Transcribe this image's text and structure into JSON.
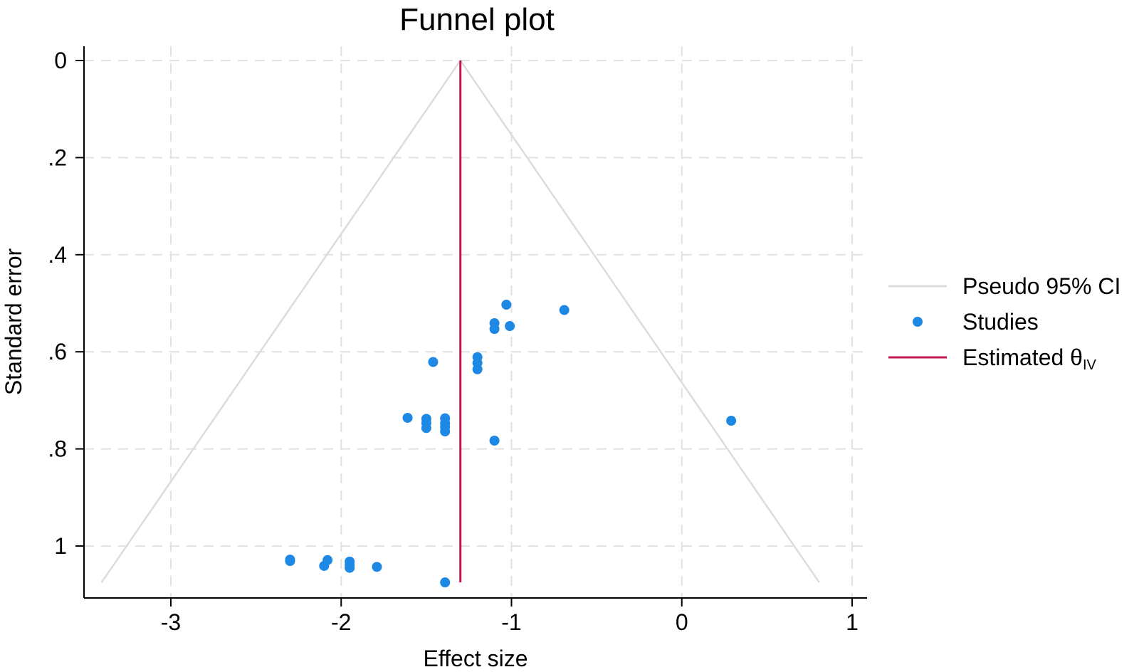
{
  "chart_data": {
    "type": "scatter",
    "title": "Funnel plot",
    "xlabel": "Effect size",
    "ylabel": "Standard error",
    "xlim": [
      -3.5,
      1.1
    ],
    "ylim": [
      0,
      1.11
    ],
    "y_reversed": true,
    "x_ticks": [
      -3,
      -2,
      -1,
      0,
      1
    ],
    "x_tick_labels": [
      "-3",
      "-2",
      "-1",
      "0",
      "1"
    ],
    "y_ticks": [
      0,
      0.2,
      0.4,
      0.6,
      0.8,
      1
    ],
    "y_tick_labels": [
      "0",
      ".2",
      ".4",
      ".6",
      ".8",
      "1"
    ],
    "grid": true,
    "legend_position": "right",
    "estimate": {
      "name": "Estimated θ",
      "subscript": "IV",
      "value": -1.3,
      "se_max": 1.075,
      "color": "#c0174e"
    },
    "pseudo_ci": {
      "name": "Pseudo 95% CI",
      "center": -1.3,
      "se_max": 1.075,
      "z": 1.96,
      "color": "#dcdcdc"
    },
    "series": [
      {
        "name": "Studies",
        "color": "#1e88e5",
        "points": [
          {
            "x": -1.03,
            "y": 0.503
          },
          {
            "x": -0.69,
            "y": 0.514
          },
          {
            "x": -1.1,
            "y": 0.541
          },
          {
            "x": -1.1,
            "y": 0.553
          },
          {
            "x": -1.01,
            "y": 0.547
          },
          {
            "x": -1.46,
            "y": 0.621
          },
          {
            "x": -1.2,
            "y": 0.611
          },
          {
            "x": -1.2,
            "y": 0.623
          },
          {
            "x": -1.2,
            "y": 0.636
          },
          {
            "x": -1.61,
            "y": 0.736
          },
          {
            "x": -1.5,
            "y": 0.738
          },
          {
            "x": -1.5,
            "y": 0.747
          },
          {
            "x": -1.5,
            "y": 0.757
          },
          {
            "x": -1.39,
            "y": 0.737
          },
          {
            "x": -1.39,
            "y": 0.747
          },
          {
            "x": -1.39,
            "y": 0.755
          },
          {
            "x": -1.39,
            "y": 0.764
          },
          {
            "x": -1.1,
            "y": 0.783
          },
          {
            "x": 0.29,
            "y": 0.742
          },
          {
            "x": -2.3,
            "y": 1.028
          },
          {
            "x": -2.3,
            "y": 1.031
          },
          {
            "x": -2.08,
            "y": 1.029
          },
          {
            "x": -2.1,
            "y": 1.041
          },
          {
            "x": -1.95,
            "y": 1.032
          },
          {
            "x": -1.95,
            "y": 1.039
          },
          {
            "x": -1.95,
            "y": 1.045
          },
          {
            "x": -1.79,
            "y": 1.043
          },
          {
            "x": -1.39,
            "y": 1.075
          }
        ]
      }
    ]
  }
}
